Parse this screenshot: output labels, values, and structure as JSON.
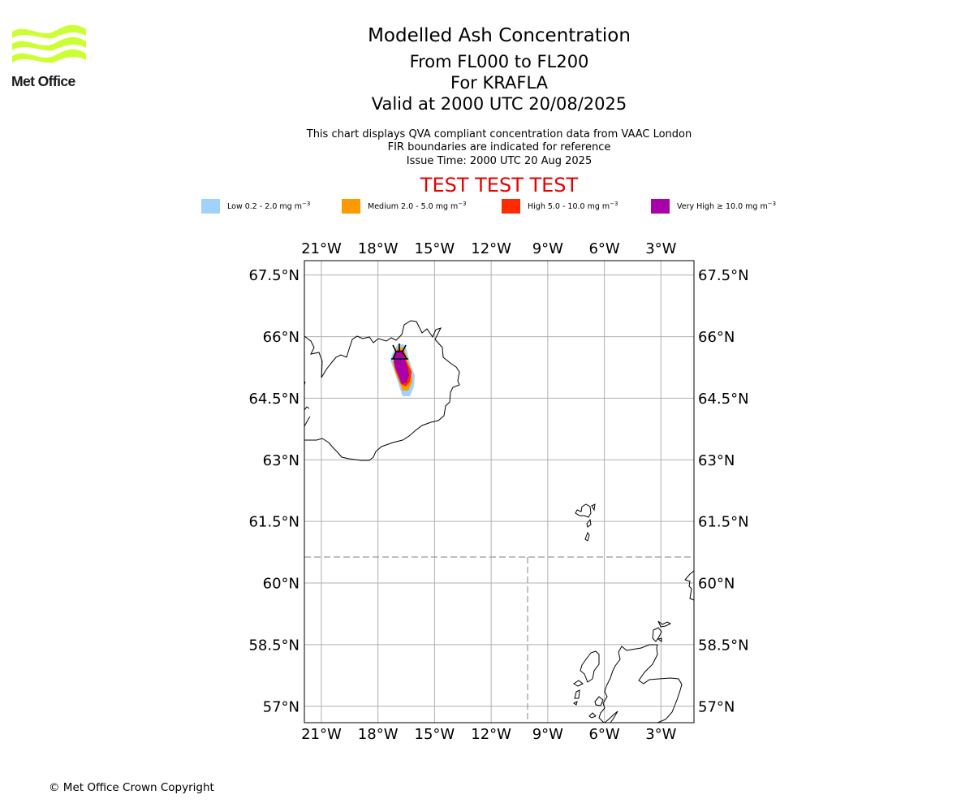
{
  "logo": {
    "text": "Met Office",
    "color": "#ccff33"
  },
  "header": {
    "title": "Modelled Ash Concentration",
    "levels": "From FL000 to FL200",
    "volcano": "For KRAFLA",
    "valid": "Valid at 2000 UTC 20/08/2025",
    "note1": "This chart displays QVA compliant concentration data from VAAC London",
    "note2": "FIR boundaries are indicated for reference",
    "issue": "Issue Time: 2000 UTC 20 Aug 2025",
    "test_banner": "TEST TEST TEST"
  },
  "legend": [
    {
      "label": "Low 0.2 - 2.0 mg m",
      "unit_exp": "−3",
      "color": "#a0d2fa"
    },
    {
      "label": "Medium 2.0 - 5.0 mg m",
      "unit_exp": "−3",
      "color": "#ff9900"
    },
    {
      "label": "High 5.0 - 10.0 mg m",
      "unit_exp": "−3",
      "color": "#ff2a00"
    },
    {
      "label": "Very High  ≥  10.0 mg m",
      "unit_exp": "−3",
      "color": "#aa00aa"
    }
  ],
  "map": {
    "lon_range": [
      -21.9,
      -1.25
    ],
    "lat_range": [
      56.6,
      67.85
    ],
    "lon_ticks": [
      -21,
      -18,
      -15,
      -12,
      -9,
      -6,
      -3
    ],
    "lon_tick_labels": [
      "21°W",
      "18°W",
      "15°W",
      "12°W",
      "9°W",
      "6°W",
      "3°W"
    ],
    "lat_ticks": [
      57,
      58.5,
      60,
      61.5,
      63,
      64.5,
      66,
      67.5
    ],
    "lat_tick_labels": [
      "57°N",
      "58.5°N",
      "60°N",
      "61.5°N",
      "63°N",
      "64.5°N",
      "66°N",
      "67.5°N"
    ],
    "grid": true,
    "volcano_icon": "volcano-icon",
    "volcano_location": {
      "lon": -16.8,
      "lat": 65.72
    },
    "fir_boundary_color": "#999999",
    "ash_levels": [
      "low",
      "medium",
      "high",
      "very-high"
    ]
  },
  "footer": {
    "copyright": "© Met Office Crown Copyright"
  }
}
